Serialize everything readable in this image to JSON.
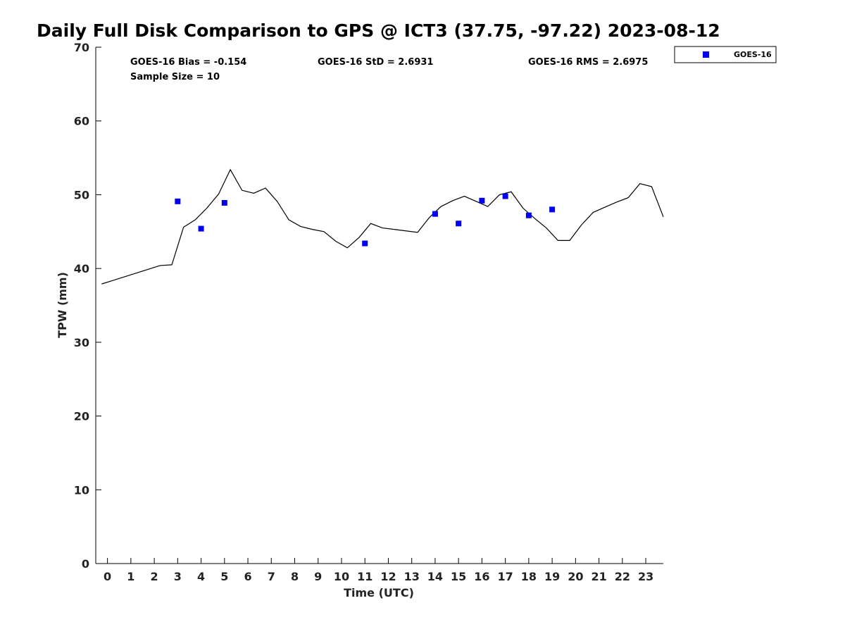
{
  "chart_data": {
    "type": "scatter",
    "title": "Daily Full Disk Comparison to GPS @ ICT3 (37.75, -97.22) 2023-08-12",
    "xlabel": "Time (UTC)",
    "ylabel": "TPW (mm)",
    "xlim": [
      -0.5,
      23.75
    ],
    "ylim": [
      0,
      70
    ],
    "x_ticks": [
      0,
      1,
      2,
      3,
      4,
      5,
      6,
      7,
      8,
      9,
      10,
      11,
      12,
      13,
      14,
      15,
      16,
      17,
      18,
      19,
      20,
      21,
      22,
      23
    ],
    "y_ticks": [
      0,
      10,
      20,
      30,
      40,
      50,
      60,
      70
    ],
    "grid": false,
    "legend_position": "top-right outside plot",
    "stats": {
      "bias": "GOES-16 Bias = -0.154",
      "std": "GOES-16 StD = 2.6931",
      "rms": "GOES-16 RMS = 2.6975",
      "sample": "Sample Size = 10"
    },
    "series": [
      {
        "name": "GOES-16",
        "kind": "scatter",
        "marker": "square",
        "color": "#0000ee",
        "x": [
          3,
          4,
          5,
          11,
          14,
          15,
          16,
          17,
          18,
          19
        ],
        "y": [
          49.1,
          45.4,
          48.9,
          43.4,
          47.4,
          46.1,
          49.2,
          49.8,
          47.2,
          48.0
        ]
      },
      {
        "kind": "line",
        "color": "#000000",
        "x": [
          -0.25,
          0.25,
          0.75,
          1.25,
          1.75,
          2.25,
          2.75,
          3.25,
          3.75,
          4.25,
          4.75,
          5.25,
          5.75,
          6.25,
          6.75,
          7.25,
          7.75,
          8.25,
          8.75,
          9.25,
          9.75,
          10.25,
          10.75,
          11.25,
          11.75,
          12.25,
          12.75,
          13.25,
          13.75,
          14.25,
          14.75,
          15.25,
          15.75,
          16.25,
          16.75,
          17.25,
          17.75,
          18.25,
          18.75,
          19.25,
          19.75,
          20.25,
          20.75,
          21.25,
          21.75,
          22.25,
          22.75,
          23.25,
          23.75
        ],
        "y": [
          37.9,
          38.4,
          38.9,
          39.4,
          39.9,
          40.4,
          40.5,
          45.6,
          46.6,
          48.2,
          50.1,
          53.4,
          50.6,
          50.2,
          50.9,
          49.1,
          46.6,
          45.7,
          45.3,
          45.0,
          43.7,
          42.8,
          44.2,
          46.1,
          45.5,
          45.3,
          45.1,
          44.9,
          46.9,
          48.4,
          49.2,
          49.8,
          49.1,
          48.4,
          50.0,
          50.4,
          48.2,
          46.8,
          45.5,
          43.8,
          43.8,
          45.9,
          47.6,
          48.3,
          49.0,
          49.6,
          51.5,
          51.1,
          47.0
        ]
      }
    ]
  }
}
